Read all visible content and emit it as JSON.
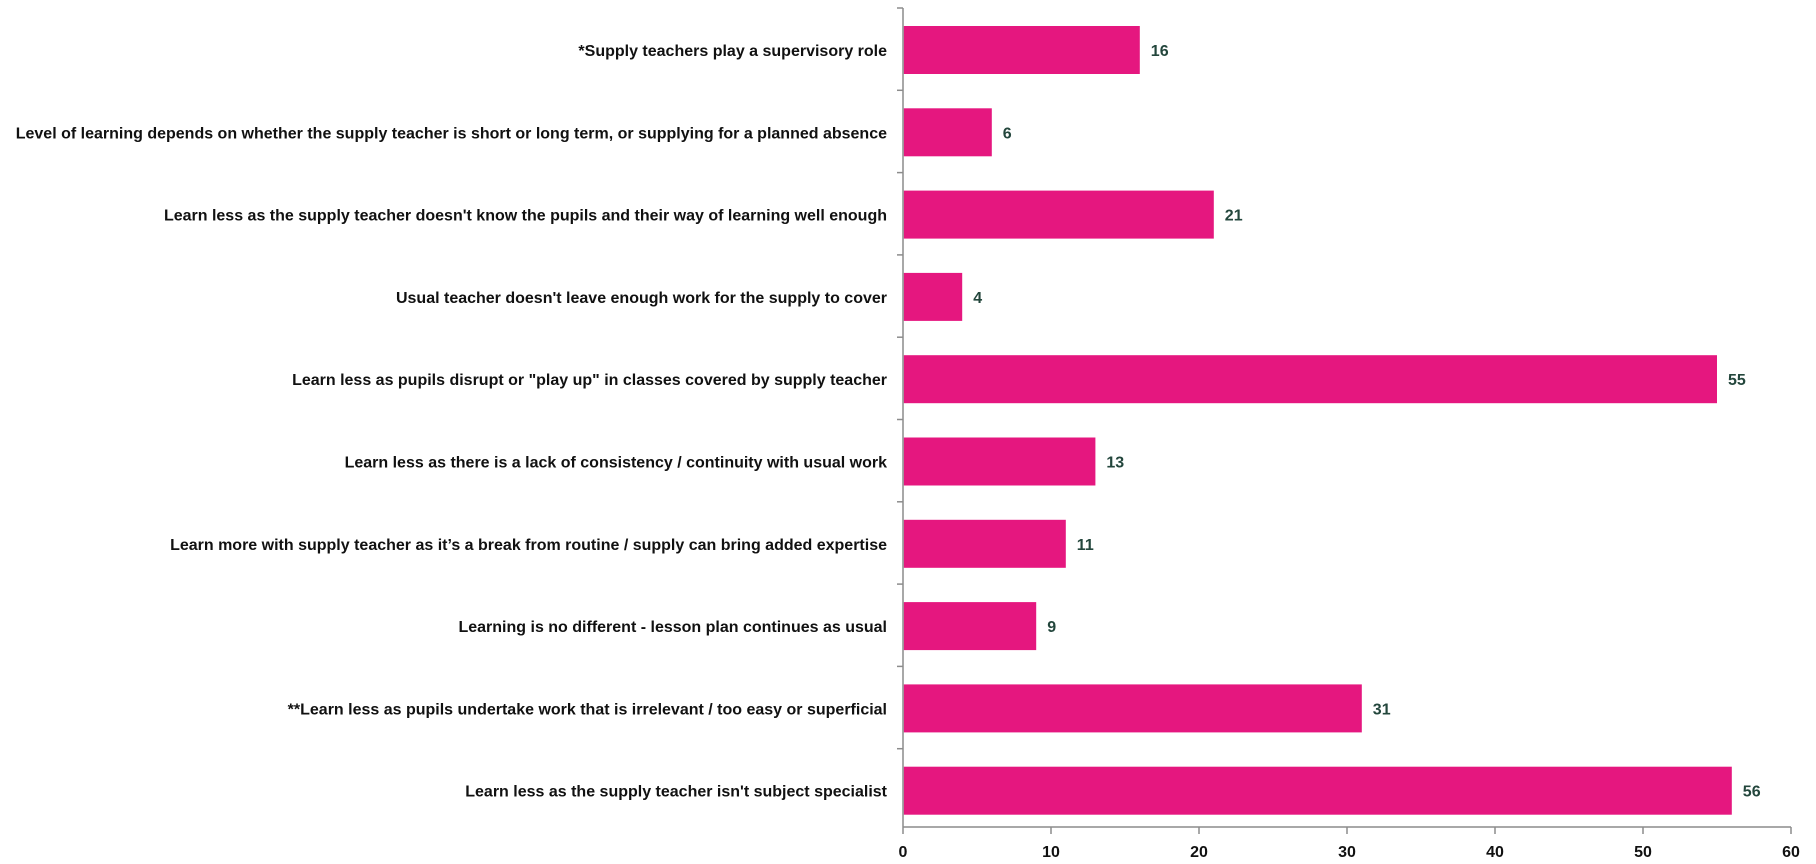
{
  "chart_data": {
    "type": "bar",
    "orientation": "horizontal",
    "categories": [
      "*Supply teachers play a supervisory role",
      "Level of learning depends on whether the supply teacher is short or long term, or supplying for a planned absence",
      "Learn less as the supply teacher doesn't know the pupils and their way of learning well enough",
      "Usual teacher doesn't leave enough work for the supply to cover",
      "Learn less as pupils disrupt or \"play up\" in classes covered by supply teacher",
      "Learn less as there is a lack of consistency / continuity with usual work",
      "Learn more with supply teacher as it’s a break from routine / supply can bring added expertise",
      "Learning is no different - lesson plan continues as usual",
      "**Learn less as pupils undertake work that is irrelevant / too easy or superficial",
      "Learn less as the supply teacher isn't subject specialist"
    ],
    "values": [
      16,
      6,
      21,
      4,
      55,
      13,
      11,
      9,
      31,
      56
    ],
    "xlim": [
      0,
      60
    ],
    "xticks": [
      0,
      10,
      20,
      30,
      40,
      50,
      60
    ],
    "title": "",
    "xlabel": "",
    "ylabel": "",
    "grid": false,
    "data_labels": true,
    "colors": {
      "bar": "#e5177f",
      "value_label": "#23463c",
      "text": "#111111",
      "axis": "#8c8c8c"
    }
  }
}
